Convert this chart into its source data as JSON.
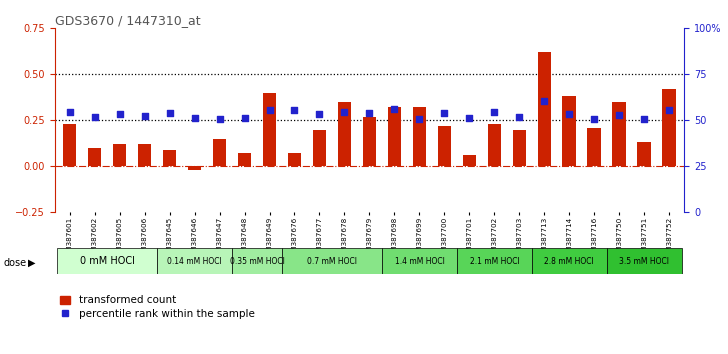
{
  "title": "GDS3670 / 1447310_at",
  "samples": [
    "GSM387601",
    "GSM387602",
    "GSM387605",
    "GSM387606",
    "GSM387645",
    "GSM387646",
    "GSM387647",
    "GSM387648",
    "GSM387649",
    "GSM387676",
    "GSM387677",
    "GSM387678",
    "GSM387679",
    "GSM387698",
    "GSM387699",
    "GSM387700",
    "GSM387701",
    "GSM387702",
    "GSM387703",
    "GSM387713",
    "GSM387714",
    "GSM387716",
    "GSM387750",
    "GSM387751",
    "GSM387752"
  ],
  "red_values": [
    0.23,
    0.1,
    0.12,
    0.12,
    0.09,
    -0.02,
    0.15,
    0.07,
    0.4,
    0.07,
    0.2,
    0.35,
    0.27,
    0.32,
    0.32,
    0.22,
    0.06,
    0.23,
    0.2,
    0.62,
    0.38,
    0.21,
    0.35,
    0.13,
    0.42
  ],
  "blue_values": [
    0.295,
    0.27,
    0.285,
    0.275,
    0.29,
    0.265,
    0.26,
    0.265,
    0.305,
    0.305,
    0.285,
    0.295,
    0.29,
    0.31,
    0.26,
    0.29,
    0.265,
    0.295,
    0.27,
    0.355,
    0.285,
    0.26,
    0.28,
    0.255,
    0.305
  ],
  "dose_groups": [
    {
      "label": "0 mM HOCl",
      "start": 0,
      "end": 4,
      "color": "#d0ffd0"
    },
    {
      "label": "0.14 mM HOCl",
      "start": 4,
      "end": 7,
      "color": "#b8f5b8"
    },
    {
      "label": "0.35 mM HOCl",
      "start": 7,
      "end": 9,
      "color": "#a0eda0"
    },
    {
      "label": "0.7 mM HOCl",
      "start": 9,
      "end": 13,
      "color": "#88e588"
    },
    {
      "label": "1.4 mM HOCl",
      "start": 13,
      "end": 16,
      "color": "#70dd70"
    },
    {
      "label": "2.1 mM HOCl",
      "start": 16,
      "end": 19,
      "color": "#58d558"
    },
    {
      "label": "2.8 mM HOCl",
      "start": 19,
      "end": 22,
      "color": "#40cc40"
    },
    {
      "label": "3.5 mM HOCl",
      "start": 22,
      "end": 25,
      "color": "#30c030"
    }
  ],
  "ylim_left": [
    -0.25,
    0.75
  ],
  "ylim_right": [
    0,
    100
  ],
  "yticks_left": [
    -0.25,
    0.0,
    0.25,
    0.5,
    0.75
  ],
  "yticks_right": [
    0,
    25,
    50,
    75,
    100
  ],
  "hline_dotted": [
    0.5,
    0.25
  ],
  "hline_dashed": 0.0,
  "bar_color": "#cc2200",
  "dot_color": "#2222cc",
  "bg_color": "#ffffff",
  "title_color": "#555555",
  "left_axis_color": "#cc2200",
  "right_axis_color": "#2222cc"
}
